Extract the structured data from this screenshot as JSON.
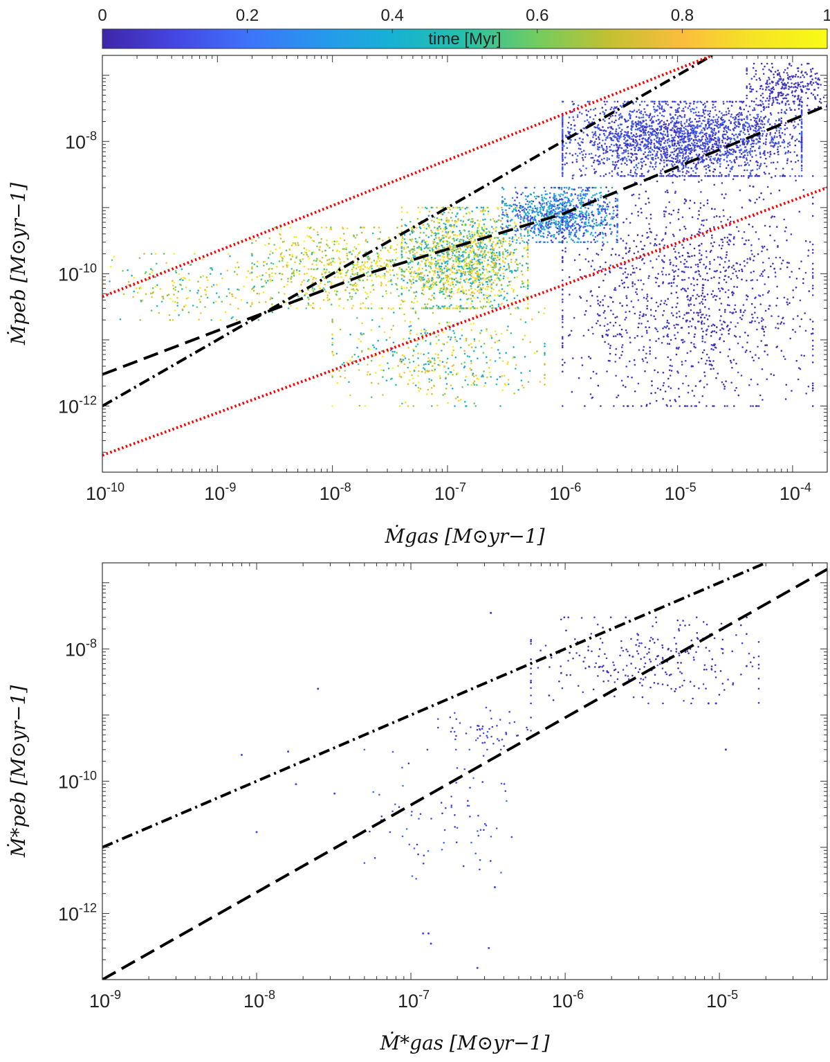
{
  "colorbar": {
    "label": "time [Myr]",
    "ticks": [
      "0",
      "0.2",
      "0.4",
      "0.6",
      "0.8",
      "1"
    ],
    "range": [
      0,
      1
    ],
    "colormap": [
      "#3e26a8",
      "#4546e3",
      "#3e73fb",
      "#2797ee",
      "#17b1d4",
      "#25c0a9",
      "#72cc5f",
      "#c3c032",
      "#fbbd3c",
      "#f5e425",
      "#f9fb15"
    ]
  },
  "chart_data": [
    {
      "type": "scatter",
      "title": "",
      "xlabel": "Ṁgas [M⊙yr−1]",
      "ylabel": "Ṁpeb [M⊙yr−1]",
      "xscale": "log",
      "yscale": "log",
      "xlim": [
        1e-10,
        0.0002
      ],
      "ylim": [
        1e-13,
        2e-07
      ],
      "x_tick_labels": [
        "10-10",
        "10-9",
        "10-8",
        "10-7",
        "10-6",
        "10-5",
        "10-4"
      ],
      "y_tick_labels": [
        "10-12",
        "10-10",
        "10-8"
      ],
      "grid": false,
      "color_by": "time [Myr]",
      "point_clusters": [
        {
          "x_range": [
            4e-08,
            5e-07
          ],
          "y_range": [
            3e-11,
            1e-09
          ],
          "time_range": [
            0.3,
            1.0
          ],
          "count": 1500
        },
        {
          "x_range": [
            2e-09,
            1e-07
          ],
          "y_range": [
            3e-11,
            5e-10
          ],
          "time_range": [
            0.5,
            1.0
          ],
          "count": 700
        },
        {
          "x_range": [
            1e-10,
            3e-09
          ],
          "y_range": [
            2e-11,
            2e-10
          ],
          "time_range": [
            0.4,
            1.0
          ],
          "count": 200
        },
        {
          "x_range": [
            1e-08,
            7e-07
          ],
          "y_range": [
            1e-12,
            3e-11
          ],
          "time_range": [
            0.3,
            1.0
          ],
          "count": 450
        },
        {
          "x_range": [
            3e-07,
            3e-06
          ],
          "y_range": [
            3e-10,
            2e-09
          ],
          "time_range": [
            0.05,
            0.5
          ],
          "count": 900
        },
        {
          "x_range": [
            1e-06,
            0.00012
          ],
          "y_range": [
            3e-09,
            4e-08
          ],
          "time_range": [
            0.0,
            0.2
          ],
          "count": 2300
        },
        {
          "x_range": [
            1e-06,
            0.00015
          ],
          "y_range": [
            1e-12,
            3e-09
          ],
          "time_range": [
            0.0,
            0.1
          ],
          "count": 1300
        },
        {
          "x_range": [
            4e-05,
            0.0002
          ],
          "y_range": [
            3e-08,
            1.5e-07
          ],
          "time_range": [
            0.0,
            0.1
          ],
          "count": 300
        }
      ],
      "reference_lines": [
        {
          "style": "dash-dot",
          "color": "#000000",
          "points": [
            [
              1e-10,
              1e-12
            ],
            [
              2e-05,
              2e-07
            ]
          ]
        },
        {
          "style": "dashed",
          "color": "#000000",
          "points": [
            [
              1e-10,
              3e-12
            ],
            [
              2e-08,
              1e-10
            ],
            [
              1e-06,
              8e-10
            ],
            [
              0.0002,
              3.5e-08
            ]
          ]
        },
        {
          "style": "dotted",
          "color": "#ff0000",
          "points": [
            [
              1e-10,
              4.5e-11
            ],
            [
              2e-05,
              2e-07
            ]
          ]
        },
        {
          "style": "dotted",
          "color": "#ff0000",
          "points": [
            [
              1e-10,
              1.8e-13
            ],
            [
              0.0002,
              2e-09
            ]
          ]
        }
      ]
    },
    {
      "type": "scatter",
      "title": "",
      "xlabel": "Ṁ*gas [M⊙yr−1]",
      "ylabel": "Ṁ*peb [M⊙yr−1]",
      "xscale": "log",
      "yscale": "log",
      "xlim": [
        1e-09,
        5e-05
      ],
      "ylim": [
        1e-13,
        2e-07
      ],
      "x_tick_labels": [
        "10-9",
        "10-8",
        "10-7",
        "10-6",
        "10-5"
      ],
      "y_tick_labels": [
        "10-12",
        "10-10",
        "10-8"
      ],
      "grid": false,
      "color_by": "time [Myr]",
      "point_clusters": [
        {
          "x_range": [
            6e-07,
            1.8e-05
          ],
          "y_range": [
            1.5e-09,
            3e-08
          ],
          "time_range": [
            0.0,
            0.1
          ],
          "count": 260
        },
        {
          "x_range": [
            1.5e-07,
            6e-07
          ],
          "y_range": [
            3e-10,
            1.3e-09
          ],
          "time_range": [
            0.05,
            0.15
          ],
          "count": 55
        },
        {
          "x_range": [
            5e-08,
            6e-07
          ],
          "y_range": [
            3e-12,
            3e-10
          ],
          "time_range": [
            0.05,
            0.2
          ],
          "count": 80
        }
      ],
      "points": [
        {
          "x": 8e-09,
          "y": 2.5e-10,
          "t": 0.1
        },
        {
          "x": 1e-08,
          "y": 1.7e-11,
          "t": 0.1
        },
        {
          "x": 1.6e-08,
          "y": 2.8e-10,
          "t": 0.1
        },
        {
          "x": 1.8e-08,
          "y": 9e-11,
          "t": 0.1
        },
        {
          "x": 2.5e-08,
          "y": 2.5e-09,
          "t": 0.05
        },
        {
          "x": 3.2e-08,
          "y": 6.5e-11,
          "t": 0.1
        },
        {
          "x": 1.2e-07,
          "y": 5e-13,
          "t": 0.1
        },
        {
          "x": 1.3e-07,
          "y": 5e-13,
          "t": 0.1
        },
        {
          "x": 1.35e-07,
          "y": 3.5e-13,
          "t": 0.1
        },
        {
          "x": 2.7e-07,
          "y": 1.5e-13,
          "t": 0.1
        },
        {
          "x": 3.2e-07,
          "y": 3e-13,
          "t": 0.1
        },
        {
          "x": 3.5e-07,
          "y": 2.5e-12,
          "t": 0.1
        },
        {
          "x": 8.5e-06,
          "y": 1.5e-09,
          "t": 0.05
        },
        {
          "x": 1.1e-05,
          "y": 3e-10,
          "t": 0.05
        },
        {
          "x": 9.5e-06,
          "y": 1.5e-09,
          "t": 0.05
        },
        {
          "x": 1.5e-05,
          "y": 5.5e-09,
          "t": 0.05
        },
        {
          "x": 3.3e-07,
          "y": 3.5e-08,
          "t": 0.05
        }
      ],
      "reference_lines": [
        {
          "style": "dash-dot",
          "color": "#000000",
          "points": [
            [
              1e-09,
              1e-11
            ],
            [
              2e-05,
              2e-07
            ]
          ]
        },
        {
          "style": "dashed",
          "color": "#000000",
          "points": [
            [
              1e-09,
              1e-13
            ],
            [
              5e-05,
              1.6e-07
            ]
          ]
        }
      ]
    }
  ]
}
